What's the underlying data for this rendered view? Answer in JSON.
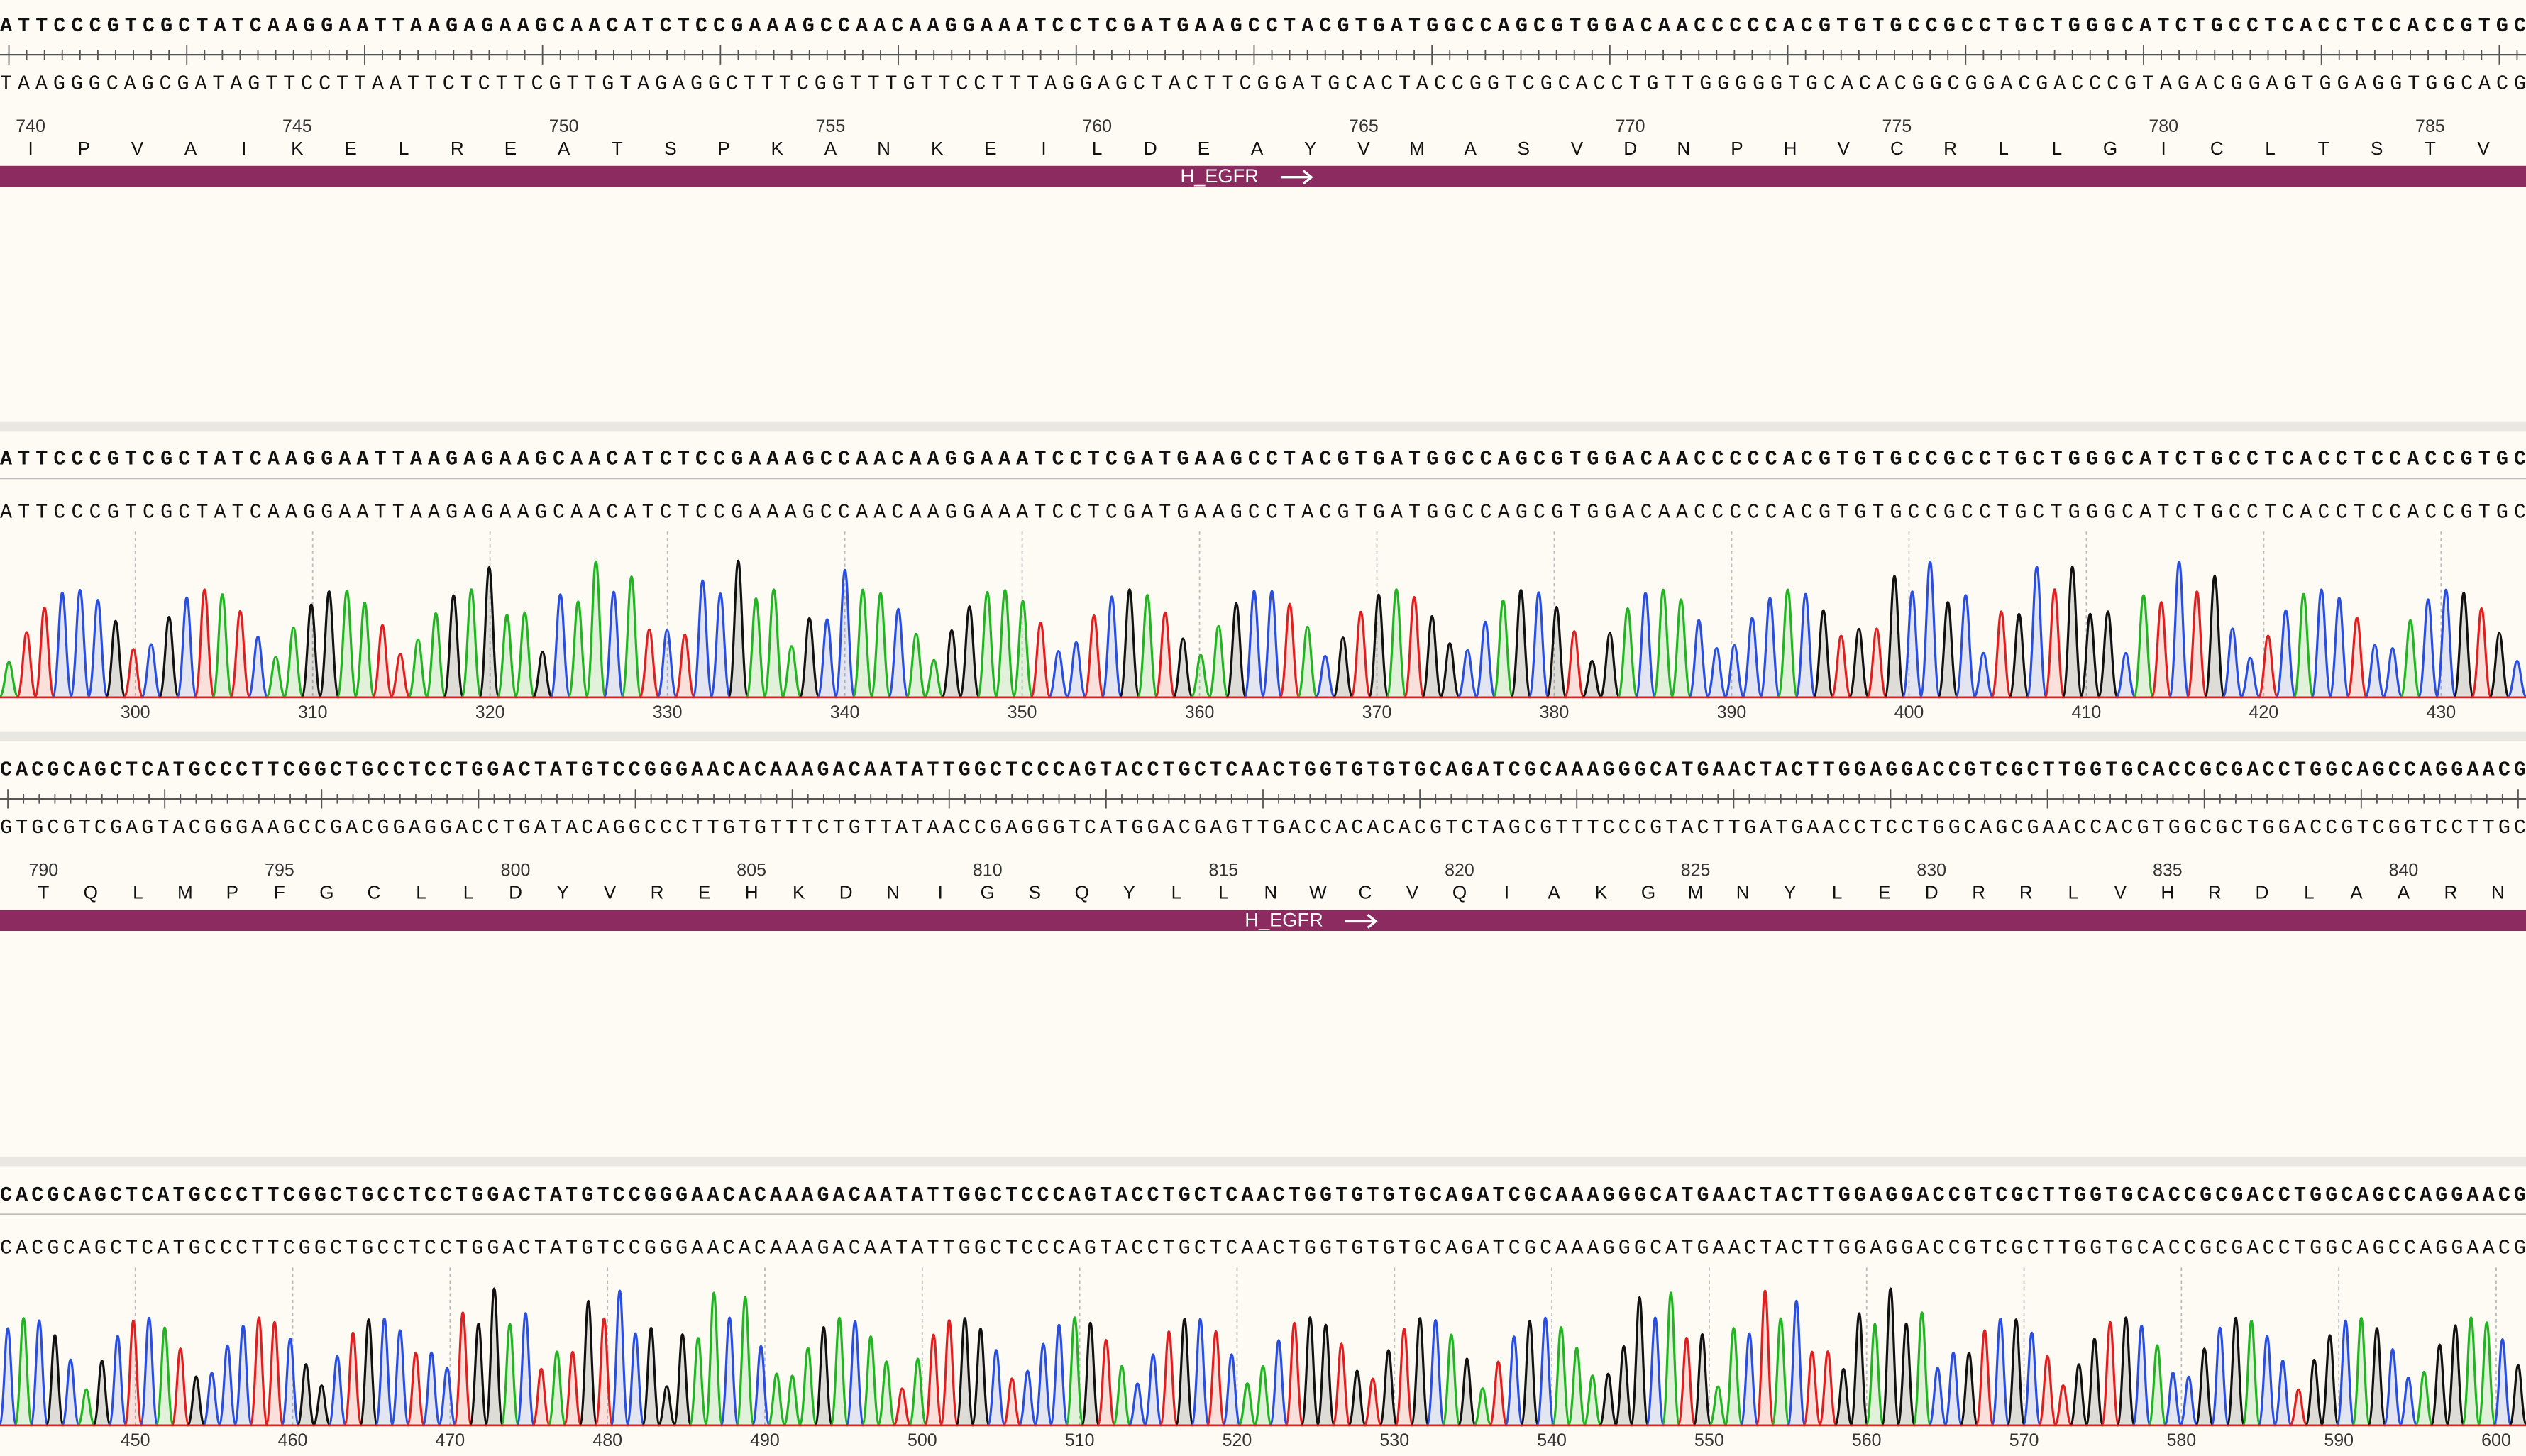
{
  "blocks": [
    {
      "top_strand": "ATTCCCGTCGCTATCAAGGAATTAAGAGAAGCAACATCTCCGAAAGCCAACAAGGAAATCCTCGATGAAGCCTACGTGATGGCCAGCGTGGACAACCCCCACGTGTGCCGCCTGCTGGGCATCTGCCTCACCTCCACCGTGC",
      "bottom_strand": "TAAGGGCAGCGATAGTTCCTTAATTCTCTTCGTTGTAGAGGCTTTCGGTTTGTTCCTTTAGGAGCTACTTCGGATGCACTACCGGTCGCACCTGTTGGGGGTGCACACGGCGGACGACCCGTAGACGGAGTGGAGGTGGCACG",
      "ruler": [
        740,
        745,
        750,
        755,
        760,
        765,
        770,
        775,
        780,
        785
      ],
      "translation": [
        "I",
        "P",
        "V",
        "A",
        "I",
        "K",
        "E",
        "L",
        "R",
        "E",
        "A",
        "T",
        "S",
        "P",
        "K",
        "A",
        "N",
        "K",
        "E",
        "I",
        "L",
        "D",
        "E",
        "A",
        "Y",
        "V",
        "M",
        "A",
        "S",
        "V",
        "D",
        "N",
        "P",
        "H",
        "V",
        "C",
        "R",
        "L",
        "L",
        "G",
        "I",
        "C",
        "L",
        "T",
        "S",
        "T",
        "V"
      ],
      "feature": "H_EGFR",
      "trace": {
        "consensus": "ATTCCCGTCGCTATCAAGGAATTAAGAGAAGCAACATCTCCGAAAGCCAACAAGGAAATCCTCGATGAAGCCTACGTGATGGCCAGCGTGGACAACCCCCACGTGTGCCGCCTGCTGGGCATCTGCCTCACCTCCACCGTGC",
        "read": "ATTCCCGTCGCTATCAAGGAATTAAGAGAAGCAACATCTCCGAAAGCCAACAAGGAAATCCTCGATGAAGCCTACGTGATGGCCAGCGTGGACAACCCCCACGTGTGCCGCCTGCTGGGCATCTGCCTCACCTCCACCGTGC",
        "positions": [
          300,
          310,
          320,
          330,
          340,
          350,
          360,
          370,
          380,
          390,
          400,
          410,
          420,
          430
        ]
      }
    },
    {
      "top_strand": "CACGCAGCTCATGCCCTTCGGCTGCCTCCTGGACTATGTCCGGGAACACAAAGACAATATTGGCTCCCAGTACCTGCTCAACTGGTGTGTGCAGATCGCAAAGGGCATGAACTACTTGGAGGACCGTCGCTTGGTGCACCGCGACCTGGCAGCCAGGAACG",
      "bottom_strand": "GTGCGTCGAGTACGGGAAGCCGACGGAGGACCTGATACAGGCCCTTGTGTTTCTGTTATAACCGAGGGTCATGGACGAGTTGACCACACACGTCTAGCGTTTCCCGTACTTGATGAACCTCCTGGCAGCGAACCACGTGGCGCTGGACCGTCGGTCCTTGC",
      "ruler": [
        790,
        795,
        800,
        805,
        810,
        815,
        820,
        825,
        830,
        835,
        840
      ],
      "translation": [
        "T",
        "Q",
        "L",
        "M",
        "P",
        "F",
        "G",
        "C",
        "L",
        "L",
        "D",
        "Y",
        "V",
        "R",
        "E",
        "H",
        "K",
        "D",
        "N",
        "I",
        "G",
        "S",
        "Q",
        "Y",
        "L",
        "L",
        "N",
        "W",
        "C",
        "V",
        "Q",
        "I",
        "A",
        "K",
        "G",
        "M",
        "N",
        "Y",
        "L",
        "E",
        "D",
        "R",
        "R",
        "L",
        "V",
        "H",
        "R",
        "D",
        "L",
        "A",
        "A",
        "R",
        "N"
      ],
      "feature": "H_EGFR",
      "trace": {
        "consensus": "CACGCAGCTCATGCCCTTCGGCTGCCTCCTGGACTATGTCCGGGAACACAAAGACAATATTGGCTCCCAGTACCTGCTCAACTGGTGTGTGCAGATCGCAAAGGGCATGAACTACTTGGAGGACCGTCGCTTGGTGCACCGCGACCTGGCAGCCAGGAACG",
        "read": "CACGCAGCTCATGCCCTTCGGCTGCCTCCTGGACTATGTCCGGGAACACAAAGACAATATTGGCTCCCAGTACCTGCTCAACTGGTGTGTGCAGATCGCAAAGGGCATGAACTACTTGGAGGACCGTCGCTTGGTGCACCGCGACCTGGCAGCCAGGAACG",
        "positions": [
          450,
          460,
          470,
          480,
          490,
          500,
          510,
          520,
          530,
          540,
          550,
          560,
          570,
          580,
          590,
          600
        ]
      }
    }
  ]
}
